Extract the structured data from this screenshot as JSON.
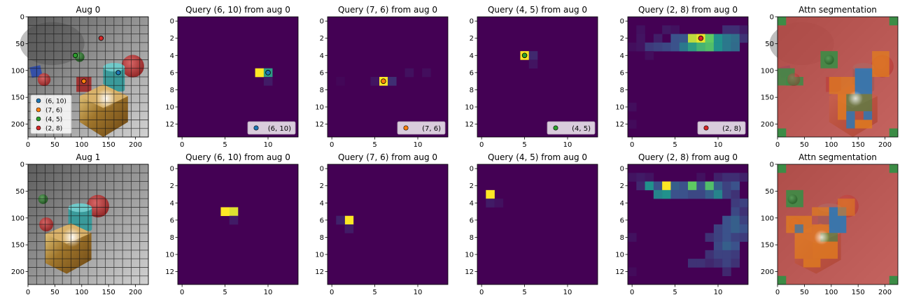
{
  "figure": {
    "layout": "2x6 grid of image panels"
  },
  "colors": {
    "viridis_low": "#440154",
    "query_points": [
      "#1f77b4",
      "#ff7f0e",
      "#2ca02c",
      "#d62728"
    ],
    "seg_red": "#c14b45",
    "seg_green": "#3c8c46",
    "seg_orange": "#e17d1e",
    "seg_blue": "#2f78b4"
  },
  "chart_data": [
    {
      "type": "image",
      "title": "Aug 0",
      "xticks": [
        0,
        50,
        100,
        150,
        200
      ],
      "yticks": [
        0,
        50,
        100,
        150,
        200
      ],
      "xlim": [
        0,
        224
      ],
      "ylim": [
        224,
        0
      ],
      "points": [
        {
          "x": 168,
          "y": 104,
          "label": "(6, 10)"
        },
        {
          "x": 104,
          "y": 120,
          "label": "(7, 6)"
        },
        {
          "x": 88,
          "y": 72,
          "label": "(4, 5)"
        },
        {
          "x": 136,
          "y": 40,
          "label": "(2, 8)"
        }
      ],
      "legend": {
        "placement": "lower-left",
        "entries": [
          "(6, 10)",
          "(7, 6)",
          "(4, 5)",
          "(2, 8)"
        ]
      }
    },
    {
      "type": "heatmap",
      "title": "Query (6, 10) from aug 0",
      "xticks": [
        0,
        5,
        10
      ],
      "yticks": [
        0,
        2,
        4,
        6,
        8,
        10,
        12
      ],
      "grid_size": 14,
      "cells": [
        [
          6,
          9,
          1.0
        ],
        [
          6,
          10,
          0.55
        ],
        [
          7,
          10,
          0.08
        ]
      ],
      "marker": {
        "x": 10,
        "y": 6,
        "label": "(6, 10)"
      }
    },
    {
      "type": "heatmap",
      "title": "Query (7, 6) from aug 0",
      "xticks": [
        0,
        5,
        10
      ],
      "yticks": [
        0,
        2,
        4,
        6,
        8,
        10,
        12
      ],
      "grid_size": 14,
      "cells": [
        [
          7,
          6,
          1.0
        ],
        [
          7,
          7,
          0.14
        ],
        [
          7,
          5,
          0.06
        ],
        [
          6,
          9,
          0.05
        ],
        [
          6,
          11,
          0.04
        ],
        [
          7,
          1,
          0.02
        ]
      ],
      "marker": {
        "x": 6,
        "y": 7,
        "label": "(7, 6)"
      }
    },
    {
      "type": "heatmap",
      "title": "Query (4, 5) from aug 0",
      "xticks": [
        0,
        5,
        10
      ],
      "yticks": [
        0,
        2,
        4,
        6,
        8,
        10,
        12
      ],
      "grid_size": 14,
      "cells": [
        [
          4,
          5,
          1.0
        ],
        [
          4,
          6,
          0.12
        ],
        [
          5,
          6,
          0.06
        ]
      ],
      "marker": {
        "x": 5,
        "y": 4,
        "label": "(4, 5)"
      }
    },
    {
      "type": "heatmap",
      "title": "Query (2, 8) from aug 0",
      "xticks": [
        0,
        5,
        10
      ],
      "yticks": [
        0,
        2,
        4,
        6,
        8,
        10,
        12
      ],
      "grid_size": 14,
      "cells": [
        [
          1,
          1,
          0.05
        ],
        [
          1,
          4,
          0.07
        ],
        [
          1,
          5,
          0.05
        ],
        [
          1,
          11,
          0.14
        ],
        [
          1,
          12,
          0.14
        ],
        [
          1,
          13,
          0.08
        ],
        [
          2,
          1,
          0.06
        ],
        [
          2,
          3,
          0.09
        ],
        [
          2,
          5,
          0.25
        ],
        [
          2,
          6,
          0.27
        ],
        [
          2,
          7,
          0.9
        ],
        [
          2,
          8,
          0.97
        ],
        [
          2,
          9,
          0.75
        ],
        [
          2,
          10,
          0.5
        ],
        [
          2,
          11,
          0.4
        ],
        [
          2,
          12,
          0.36
        ],
        [
          2,
          13,
          0.15
        ],
        [
          3,
          0,
          0.04
        ],
        [
          3,
          1,
          0.06
        ],
        [
          3,
          2,
          0.18
        ],
        [
          3,
          3,
          0.2
        ],
        [
          3,
          4,
          0.22
        ],
        [
          3,
          5,
          0.25
        ],
        [
          3,
          6,
          0.4
        ],
        [
          3,
          7,
          0.55
        ],
        [
          3,
          8,
          0.65
        ],
        [
          3,
          9,
          0.7
        ],
        [
          3,
          10,
          0.5
        ],
        [
          3,
          11,
          0.4
        ],
        [
          3,
          12,
          0.35
        ],
        [
          4,
          2,
          0.04
        ],
        [
          10,
          0,
          0.04
        ],
        [
          12,
          0,
          0.03
        ]
      ],
      "marker": {
        "x": 8,
        "y": 2,
        "label": "(2, 8)"
      }
    },
    {
      "type": "image",
      "title": "Attn segmentation",
      "xticks": [
        0,
        50,
        100,
        150,
        200
      ],
      "yticks": [
        0,
        50,
        100,
        150,
        200
      ]
    },
    {
      "type": "image",
      "title": "Aug 1",
      "xticks": [
        0,
        50,
        100,
        150,
        200
      ],
      "yticks": [
        0,
        50,
        100,
        150,
        200
      ]
    },
    {
      "type": "heatmap",
      "title": "Query (6, 10) from aug 0",
      "xticks": [
        0,
        5,
        10
      ],
      "yticks": [
        0,
        2,
        4,
        6,
        8,
        10,
        12
      ],
      "grid_size": 14,
      "cells": [
        [
          5,
          5,
          1.0
        ],
        [
          5,
          6,
          0.95
        ],
        [
          6,
          6,
          0.08
        ]
      ]
    },
    {
      "type": "heatmap",
      "title": "Query (7, 6) from aug 0",
      "xticks": [
        0,
        5,
        10
      ],
      "yticks": [
        0,
        2,
        4,
        6,
        8,
        10,
        12
      ],
      "grid_size": 14,
      "cells": [
        [
          6,
          2,
          1.0
        ],
        [
          6,
          1,
          0.1
        ],
        [
          7,
          2,
          0.08
        ]
      ]
    },
    {
      "type": "heatmap",
      "title": "Query (4, 5) from aug 0",
      "xticks": [
        0,
        5,
        10
      ],
      "yticks": [
        0,
        2,
        4,
        6,
        8,
        10,
        12
      ],
      "grid_size": 14,
      "cells": [
        [
          3,
          1,
          1.0
        ],
        [
          4,
          1,
          0.08
        ],
        [
          4,
          2,
          0.05
        ]
      ]
    },
    {
      "type": "heatmap",
      "title": "Query (2, 8) from aug 0",
      "xticks": [
        0,
        5,
        10
      ],
      "yticks": [
        0,
        2,
        4,
        6,
        8,
        10,
        12
      ],
      "grid_size": 14,
      "cells": [
        [
          1,
          0,
          0.06
        ],
        [
          1,
          1,
          0.08
        ],
        [
          1,
          2,
          0.06
        ],
        [
          1,
          8,
          0.05
        ],
        [
          1,
          10,
          0.1
        ],
        [
          1,
          11,
          0.14
        ],
        [
          1,
          12,
          0.14
        ],
        [
          1,
          13,
          0.1
        ],
        [
          2,
          1,
          0.12
        ],
        [
          2,
          2,
          0.5
        ],
        [
          2,
          3,
          0.25
        ],
        [
          2,
          4,
          1.0
        ],
        [
          2,
          5,
          0.3
        ],
        [
          2,
          6,
          0.25
        ],
        [
          2,
          7,
          0.75
        ],
        [
          2,
          8,
          0.25
        ],
        [
          2,
          9,
          0.7
        ],
        [
          2,
          10,
          0.3
        ],
        [
          2,
          11,
          0.2
        ],
        [
          2,
          12,
          0.25
        ],
        [
          3,
          3,
          0.45
        ],
        [
          3,
          4,
          0.5
        ],
        [
          3,
          5,
          0.25
        ],
        [
          3,
          6,
          0.25
        ],
        [
          3,
          7,
          0.22
        ],
        [
          3,
          8,
          0.22
        ],
        [
          3,
          9,
          0.3
        ],
        [
          3,
          10,
          0.45
        ],
        [
          3,
          11,
          0.2
        ],
        [
          3,
          12,
          0.15
        ],
        [
          4,
          12,
          0.18
        ],
        [
          4,
          13,
          0.2
        ],
        [
          5,
          12,
          0.22
        ],
        [
          5,
          13,
          0.15
        ],
        [
          6,
          11,
          0.25
        ],
        [
          6,
          12,
          0.3
        ],
        [
          6,
          13,
          0.2
        ],
        [
          7,
          10,
          0.2
        ],
        [
          7,
          11,
          0.25
        ],
        [
          7,
          12,
          0.3
        ],
        [
          7,
          13,
          0.25
        ],
        [
          8,
          9,
          0.15
        ],
        [
          8,
          10,
          0.2
        ],
        [
          8,
          11,
          0.25
        ],
        [
          8,
          12,
          0.2
        ],
        [
          8,
          13,
          0.18
        ],
        [
          9,
          10,
          0.22
        ],
        [
          9,
          11,
          0.3
        ],
        [
          9,
          12,
          0.25
        ],
        [
          10,
          9,
          0.15
        ],
        [
          10,
          10,
          0.2
        ],
        [
          10,
          11,
          0.2
        ],
        [
          10,
          12,
          0.18
        ],
        [
          11,
          7,
          0.15
        ],
        [
          11,
          8,
          0.15
        ],
        [
          11,
          9,
          0.12
        ],
        [
          11,
          10,
          0.15
        ],
        [
          11,
          11,
          0.2
        ],
        [
          11,
          12,
          0.15
        ],
        [
          12,
          11,
          0.12
        ],
        [
          8,
          0,
          0.05
        ],
        [
          12,
          0,
          0.03
        ]
      ]
    },
    {
      "type": "image",
      "title": "Attn segmentation",
      "xticks": [
        0,
        50,
        100,
        150,
        200
      ],
      "yticks": [
        0,
        50,
        100,
        150,
        200
      ]
    }
  ]
}
